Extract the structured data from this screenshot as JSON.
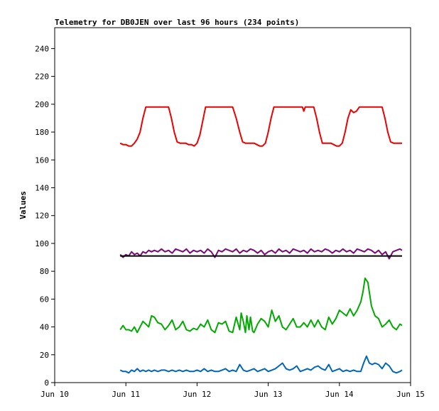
{
  "chart_data": {
    "type": "line",
    "title": "Telemetry for DB0JEN over last 96 hours (234 points)",
    "xlabel": "",
    "ylabel": "Values",
    "ylim": [
      0,
      255
    ],
    "yticks": [
      0,
      20,
      40,
      60,
      80,
      100,
      120,
      140,
      160,
      180,
      200,
      220,
      240
    ],
    "xlim": [
      0,
      5
    ],
    "xticks": [
      {
        "x": 0,
        "label": "Jun 10"
      },
      {
        "x": 1,
        "label": "Jun 11"
      },
      {
        "x": 2,
        "label": "Jun 12"
      },
      {
        "x": 3,
        "label": "Jun 13"
      },
      {
        "x": 4,
        "label": "Jun 14"
      },
      {
        "x": 5,
        "label": "Jun 15"
      }
    ],
    "grid": false,
    "series": [
      {
        "color": "#ee0000",
        "x": [
          0.92,
          0.96,
          1.0,
          1.04,
          1.08,
          1.12,
          1.16,
          1.2,
          1.24,
          1.28,
          1.32,
          1.36,
          1.4,
          1.45,
          1.5,
          1.55,
          1.6,
          1.64,
          1.68,
          1.72,
          1.76,
          1.8,
          1.84,
          1.88,
          1.92,
          1.96,
          2.0,
          2.04,
          2.08,
          2.12,
          2.16,
          2.2,
          2.24,
          2.28,
          2.32,
          2.36,
          2.4,
          2.45,
          2.5,
          2.55,
          2.6,
          2.64,
          2.68,
          2.72,
          2.76,
          2.8,
          2.84,
          2.88,
          2.92,
          2.96,
          3.0,
          3.04,
          3.08,
          3.12,
          3.16,
          3.2,
          3.24,
          3.28,
          3.32,
          3.36,
          3.4,
          3.45,
          3.48,
          3.5,
          3.52,
          3.55,
          3.6,
          3.64,
          3.68,
          3.72,
          3.76,
          3.8,
          3.84,
          3.88,
          3.92,
          3.96,
          4.0,
          4.04,
          4.08,
          4.12,
          4.16,
          4.2,
          4.24,
          4.28,
          4.32,
          4.36,
          4.4,
          4.45,
          4.5,
          4.55,
          4.6,
          4.64,
          4.68,
          4.72,
          4.76,
          4.8,
          4.84,
          4.88
        ],
        "y": [
          172,
          171,
          171,
          170,
          170,
          172,
          175,
          180,
          190,
          198,
          198,
          198,
          198,
          198,
          198,
          198,
          198,
          190,
          180,
          173,
          172,
          172,
          172,
          171,
          171,
          170,
          172,
          178,
          188,
          198,
          198,
          198,
          198,
          198,
          198,
          198,
          198,
          198,
          198,
          190,
          180,
          173,
          172,
          172,
          172,
          172,
          171,
          170,
          170,
          172,
          180,
          190,
          198,
          198,
          198,
          198,
          198,
          198,
          198,
          198,
          198,
          198,
          198,
          195,
          198,
          198,
          198,
          198,
          190,
          180,
          172,
          172,
          172,
          172,
          171,
          170,
          170,
          172,
          180,
          190,
          196,
          194,
          195,
          198,
          198,
          198,
          198,
          198,
          198,
          198,
          198,
          190,
          180,
          173,
          172,
          172,
          172,
          172
        ]
      },
      {
        "color": "#7a0b78",
        "x": [
          0.92,
          0.96,
          1.0,
          1.04,
          1.08,
          1.12,
          1.16,
          1.2,
          1.24,
          1.28,
          1.32,
          1.36,
          1.4,
          1.45,
          1.5,
          1.55,
          1.6,
          1.65,
          1.7,
          1.75,
          1.8,
          1.85,
          1.9,
          1.95,
          2.0,
          2.05,
          2.1,
          2.15,
          2.2,
          2.25,
          2.3,
          2.35,
          2.4,
          2.45,
          2.5,
          2.55,
          2.6,
          2.65,
          2.7,
          2.75,
          2.8,
          2.85,
          2.9,
          2.95,
          3.0,
          3.05,
          3.1,
          3.15,
          3.2,
          3.25,
          3.3,
          3.35,
          3.4,
          3.45,
          3.5,
          3.55,
          3.6,
          3.65,
          3.7,
          3.75,
          3.8,
          3.85,
          3.9,
          3.95,
          4.0,
          4.05,
          4.1,
          4.15,
          4.2,
          4.25,
          4.3,
          4.35,
          4.4,
          4.45,
          4.5,
          4.55,
          4.6,
          4.65,
          4.7,
          4.75,
          4.8,
          4.85,
          4.88
        ],
        "y": [
          92,
          90,
          92,
          91,
          94,
          92,
          93,
          91,
          94,
          93,
          95,
          94,
          95,
          94,
          96,
          94,
          95,
          93,
          96,
          95,
          94,
          96,
          93,
          95,
          94,
          95,
          93,
          96,
          94,
          90,
          95,
          94,
          96,
          95,
          94,
          96,
          93,
          95,
          94,
          96,
          95,
          93,
          95,
          92,
          94,
          95,
          93,
          96,
          94,
          95,
          93,
          96,
          95,
          94,
          95,
          93,
          96,
          94,
          95,
          94,
          96,
          95,
          93,
          95,
          94,
          96,
          94,
          95,
          93,
          96,
          95,
          94,
          96,
          95,
          93,
          95,
          92,
          94,
          89,
          94,
          95,
          96,
          95
        ]
      },
      {
        "color": "#000000",
        "x": [
          0.92,
          4.88
        ],
        "y": [
          91,
          91
        ]
      },
      {
        "color": "#00aa00",
        "x": [
          0.92,
          0.96,
          1.0,
          1.04,
          1.08,
          1.12,
          1.16,
          1.2,
          1.24,
          1.28,
          1.32,
          1.36,
          1.4,
          1.45,
          1.5,
          1.55,
          1.6,
          1.65,
          1.7,
          1.75,
          1.8,
          1.85,
          1.9,
          1.95,
          2.0,
          2.05,
          2.1,
          2.15,
          2.2,
          2.25,
          2.3,
          2.35,
          2.4,
          2.45,
          2.5,
          2.55,
          2.6,
          2.62,
          2.65,
          2.68,
          2.7,
          2.73,
          2.75,
          2.78,
          2.8,
          2.85,
          2.9,
          2.95,
          3.0,
          3.05,
          3.1,
          3.15,
          3.2,
          3.25,
          3.3,
          3.35,
          3.4,
          3.45,
          3.5,
          3.55,
          3.6,
          3.65,
          3.7,
          3.75,
          3.8,
          3.85,
          3.9,
          3.95,
          4.0,
          4.05,
          4.1,
          4.15,
          4.2,
          4.25,
          4.3,
          4.33,
          4.36,
          4.4,
          4.45,
          4.5,
          4.55,
          4.6,
          4.65,
          4.7,
          4.75,
          4.8,
          4.85,
          4.88
        ],
        "y": [
          38,
          41,
          38,
          38,
          37,
          40,
          36,
          40,
          44,
          42,
          40,
          48,
          47,
          43,
          42,
          38,
          41,
          45,
          38,
          40,
          44,
          38,
          37,
          39,
          38,
          42,
          40,
          45,
          38,
          36,
          43,
          42,
          44,
          37,
          36,
          47,
          38,
          50,
          44,
          36,
          48,
          38,
          47,
          37,
          36,
          42,
          46,
          44,
          40,
          52,
          44,
          48,
          40,
          38,
          42,
          46,
          40,
          40,
          43,
          40,
          45,
          40,
          45,
          40,
          38,
          47,
          42,
          46,
          52,
          50,
          48,
          53,
          48,
          52,
          58,
          65,
          75,
          72,
          55,
          48,
          46,
          40,
          42,
          45,
          40,
          38,
          42,
          41
        ]
      },
      {
        "color": "#0066bb",
        "x": [
          0.92,
          0.96,
          1.0,
          1.04,
          1.08,
          1.12,
          1.16,
          1.2,
          1.24,
          1.28,
          1.32,
          1.36,
          1.4,
          1.45,
          1.5,
          1.55,
          1.6,
          1.65,
          1.7,
          1.75,
          1.8,
          1.85,
          1.9,
          1.95,
          2.0,
          2.05,
          2.1,
          2.15,
          2.2,
          2.25,
          2.3,
          2.35,
          2.4,
          2.45,
          2.5,
          2.55,
          2.6,
          2.65,
          2.7,
          2.75,
          2.8,
          2.85,
          2.9,
          2.95,
          3.0,
          3.05,
          3.1,
          3.15,
          3.2,
          3.25,
          3.3,
          3.35,
          3.4,
          3.45,
          3.5,
          3.55,
          3.6,
          3.65,
          3.7,
          3.75,
          3.8,
          3.85,
          3.9,
          3.95,
          4.0,
          4.05,
          4.1,
          4.15,
          4.2,
          4.25,
          4.3,
          4.34,
          4.38,
          4.42,
          4.46,
          4.5,
          4.55,
          4.6,
          4.65,
          4.7,
          4.75,
          4.8,
          4.85,
          4.88
        ],
        "y": [
          9,
          8,
          8,
          7,
          9,
          8,
          10,
          8,
          9,
          8,
          9,
          8,
          9,
          8,
          9,
          9,
          8,
          9,
          8,
          9,
          8,
          9,
          8,
          8,
          9,
          8,
          10,
          8,
          9,
          8,
          8,
          9,
          10,
          8,
          9,
          8,
          13,
          9,
          8,
          9,
          10,
          8,
          9,
          10,
          8,
          9,
          10,
          12,
          14,
          10,
          9,
          10,
          12,
          8,
          9,
          10,
          9,
          11,
          12,
          10,
          9,
          13,
          8,
          9,
          10,
          8,
          9,
          8,
          9,
          8,
          8,
          14,
          19,
          14,
          13,
          14,
          13,
          10,
          14,
          12,
          8,
          7,
          8,
          9
        ]
      }
    ]
  }
}
